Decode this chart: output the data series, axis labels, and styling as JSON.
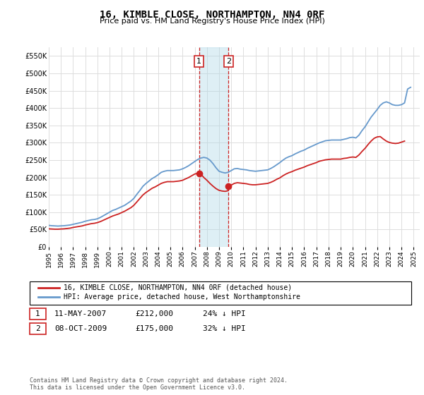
{
  "title": "16, KIMBLE CLOSE, NORTHAMPTON, NN4 0RF",
  "subtitle": "Price paid vs. HM Land Registry's House Price Index (HPI)",
  "ytick_values": [
    0,
    50000,
    100000,
    150000,
    200000,
    250000,
    300000,
    350000,
    400000,
    450000,
    500000,
    550000
  ],
  "ylim": [
    0,
    575000
  ],
  "xlim": [
    1995,
    2025.5
  ],
  "background_color": "#ffffff",
  "grid_color": "#dddddd",
  "hpi_color": "#6699cc",
  "price_color": "#cc2222",
  "marker_color": "#cc2222",
  "sale1_date_x": 2007.36,
  "sale1_price": 212000,
  "sale2_date_x": 2009.77,
  "sale2_price": 175000,
  "vline_color": "#cc2222",
  "shade_color": "#add8e6",
  "legend_property_label": "16, KIMBLE CLOSE, NORTHAMPTON, NN4 0RF (detached house)",
  "legend_hpi_label": "HPI: Average price, detached house, West Northamptonshire",
  "table_row1": [
    "1",
    "11-MAY-2007",
    "£212,000",
    "24% ↓ HPI"
  ],
  "table_row2": [
    "2",
    "08-OCT-2009",
    "£175,000",
    "32% ↓ HPI"
  ],
  "footer": "Contains HM Land Registry data © Crown copyright and database right 2024.\nThis data is licensed under the Open Government Licence v3.0.",
  "hpi_data": [
    [
      1995.0,
      62000
    ],
    [
      1995.25,
      61000
    ],
    [
      1995.5,
      60500
    ],
    [
      1995.75,
      60000
    ],
    [
      1996.0,
      60500
    ],
    [
      1996.25,
      61000
    ],
    [
      1996.5,
      62000
    ],
    [
      1996.75,
      63000
    ],
    [
      1997.0,
      65000
    ],
    [
      1997.25,
      67000
    ],
    [
      1997.5,
      69000
    ],
    [
      1997.75,
      71000
    ],
    [
      1998.0,
      74000
    ],
    [
      1998.25,
      76000
    ],
    [
      1998.5,
      78000
    ],
    [
      1998.75,
      79000
    ],
    [
      1999.0,
      81000
    ],
    [
      1999.25,
      85000
    ],
    [
      1999.5,
      90000
    ],
    [
      1999.75,
      95000
    ],
    [
      2000.0,
      100000
    ],
    [
      2000.25,
      105000
    ],
    [
      2000.5,
      108000
    ],
    [
      2000.75,
      112000
    ],
    [
      2001.0,
      116000
    ],
    [
      2001.25,
      120000
    ],
    [
      2001.5,
      126000
    ],
    [
      2001.75,
      132000
    ],
    [
      2002.0,
      140000
    ],
    [
      2002.25,
      152000
    ],
    [
      2002.5,
      163000
    ],
    [
      2002.75,
      175000
    ],
    [
      2003.0,
      183000
    ],
    [
      2003.25,
      190000
    ],
    [
      2003.5,
      197000
    ],
    [
      2003.75,
      202000
    ],
    [
      2004.0,
      208000
    ],
    [
      2004.25,
      215000
    ],
    [
      2004.5,
      218000
    ],
    [
      2004.75,
      220000
    ],
    [
      2005.0,
      220000
    ],
    [
      2005.25,
      220000
    ],
    [
      2005.5,
      221000
    ],
    [
      2005.75,
      222000
    ],
    [
      2006.0,
      225000
    ],
    [
      2006.25,
      229000
    ],
    [
      2006.5,
      234000
    ],
    [
      2006.75,
      240000
    ],
    [
      2007.0,
      246000
    ],
    [
      2007.25,
      252000
    ],
    [
      2007.5,
      256000
    ],
    [
      2007.75,
      258000
    ],
    [
      2008.0,
      256000
    ],
    [
      2008.25,
      250000
    ],
    [
      2008.5,
      240000
    ],
    [
      2008.75,
      228000
    ],
    [
      2009.0,
      218000
    ],
    [
      2009.25,
      215000
    ],
    [
      2009.5,
      213000
    ],
    [
      2009.75,
      215000
    ],
    [
      2010.0,
      220000
    ],
    [
      2010.25,
      225000
    ],
    [
      2010.5,
      226000
    ],
    [
      2010.75,
      224000
    ],
    [
      2011.0,
      223000
    ],
    [
      2011.25,
      222000
    ],
    [
      2011.5,
      220000
    ],
    [
      2011.75,
      219000
    ],
    [
      2012.0,
      218000
    ],
    [
      2012.25,
      219000
    ],
    [
      2012.5,
      220000
    ],
    [
      2012.75,
      221000
    ],
    [
      2013.0,
      222000
    ],
    [
      2013.25,
      226000
    ],
    [
      2013.5,
      231000
    ],
    [
      2013.75,
      237000
    ],
    [
      2014.0,
      243000
    ],
    [
      2014.25,
      250000
    ],
    [
      2014.5,
      256000
    ],
    [
      2014.75,
      260000
    ],
    [
      2015.0,
      263000
    ],
    [
      2015.25,
      268000
    ],
    [
      2015.5,
      272000
    ],
    [
      2015.75,
      276000
    ],
    [
      2016.0,
      279000
    ],
    [
      2016.25,
      284000
    ],
    [
      2016.5,
      288000
    ],
    [
      2016.75,
      292000
    ],
    [
      2017.0,
      296000
    ],
    [
      2017.25,
      300000
    ],
    [
      2017.5,
      303000
    ],
    [
      2017.75,
      306000
    ],
    [
      2018.0,
      307000
    ],
    [
      2018.25,
      308000
    ],
    [
      2018.5,
      308000
    ],
    [
      2018.75,
      308000
    ],
    [
      2019.0,
      308000
    ],
    [
      2019.25,
      310000
    ],
    [
      2019.5,
      312000
    ],
    [
      2019.75,
      315000
    ],
    [
      2020.0,
      316000
    ],
    [
      2020.25,
      314000
    ],
    [
      2020.5,
      322000
    ],
    [
      2020.75,
      335000
    ],
    [
      2021.0,
      346000
    ],
    [
      2021.25,
      360000
    ],
    [
      2021.5,
      374000
    ],
    [
      2021.75,
      385000
    ],
    [
      2022.0,
      396000
    ],
    [
      2022.25,
      408000
    ],
    [
      2022.5,
      415000
    ],
    [
      2022.75,
      418000
    ],
    [
      2023.0,
      415000
    ],
    [
      2023.25,
      410000
    ],
    [
      2023.5,
      408000
    ],
    [
      2023.75,
      408000
    ],
    [
      2024.0,
      410000
    ],
    [
      2024.25,
      415000
    ],
    [
      2024.5,
      455000
    ],
    [
      2024.75,
      460000
    ]
  ],
  "price_data": [
    [
      1995.0,
      52000
    ],
    [
      1995.25,
      51500
    ],
    [
      1995.5,
      51000
    ],
    [
      1995.75,
      51000
    ],
    [
      1996.0,
      51500
    ],
    [
      1996.25,
      52000
    ],
    [
      1996.5,
      53000
    ],
    [
      1996.75,
      54000
    ],
    [
      1997.0,
      56000
    ],
    [
      1997.25,
      57500
    ],
    [
      1997.5,
      59000
    ],
    [
      1997.75,
      60500
    ],
    [
      1998.0,
      63000
    ],
    [
      1998.25,
      65000
    ],
    [
      1998.5,
      67000
    ],
    [
      1998.75,
      68000
    ],
    [
      1999.0,
      70000
    ],
    [
      1999.25,
      73000
    ],
    [
      1999.5,
      77000
    ],
    [
      1999.75,
      81000
    ],
    [
      2000.0,
      85000
    ],
    [
      2000.25,
      89000
    ],
    [
      2000.5,
      92000
    ],
    [
      2000.75,
      95000
    ],
    [
      2001.0,
      99000
    ],
    [
      2001.25,
      103000
    ],
    [
      2001.5,
      108000
    ],
    [
      2001.75,
      113000
    ],
    [
      2002.0,
      120000
    ],
    [
      2002.25,
      130000
    ],
    [
      2002.5,
      140000
    ],
    [
      2002.75,
      150000
    ],
    [
      2003.0,
      157000
    ],
    [
      2003.25,
      163000
    ],
    [
      2003.5,
      169000
    ],
    [
      2003.75,
      173000
    ],
    [
      2004.0,
      178000
    ],
    [
      2004.25,
      183000
    ],
    [
      2004.5,
      186000
    ],
    [
      2004.75,
      188000
    ],
    [
      2005.0,
      188000
    ],
    [
      2005.25,
      188000
    ],
    [
      2005.5,
      189000
    ],
    [
      2005.75,
      190000
    ],
    [
      2006.0,
      192000
    ],
    [
      2006.25,
      196000
    ],
    [
      2006.5,
      200000
    ],
    [
      2006.75,
      205000
    ],
    [
      2007.0,
      210000
    ],
    [
      2007.25,
      212000
    ],
    [
      2007.36,
      212000
    ],
    [
      2007.5,
      210000
    ],
    [
      2007.75,
      200000
    ],
    [
      2008.0,
      192000
    ],
    [
      2008.25,
      183000
    ],
    [
      2008.5,
      175000
    ],
    [
      2008.75,
      168000
    ],
    [
      2009.0,
      163000
    ],
    [
      2009.25,
      161000
    ],
    [
      2009.5,
      160000
    ],
    [
      2009.75,
      162000
    ],
    [
      2009.77,
      175000
    ],
    [
      2010.0,
      178000
    ],
    [
      2010.25,
      183000
    ],
    [
      2010.5,
      185000
    ],
    [
      2010.75,
      184000
    ],
    [
      2011.0,
      183000
    ],
    [
      2011.25,
      182000
    ],
    [
      2011.5,
      180000
    ],
    [
      2011.75,
      179000
    ],
    [
      2012.0,
      179000
    ],
    [
      2012.25,
      180000
    ],
    [
      2012.5,
      181000
    ],
    [
      2012.75,
      182000
    ],
    [
      2013.0,
      183000
    ],
    [
      2013.25,
      186000
    ],
    [
      2013.5,
      190000
    ],
    [
      2013.75,
      195000
    ],
    [
      2014.0,
      199000
    ],
    [
      2014.25,
      205000
    ],
    [
      2014.5,
      210000
    ],
    [
      2014.75,
      214000
    ],
    [
      2015.0,
      217000
    ],
    [
      2015.25,
      221000
    ],
    [
      2015.5,
      224000
    ],
    [
      2015.75,
      227000
    ],
    [
      2016.0,
      230000
    ],
    [
      2016.25,
      234000
    ],
    [
      2016.5,
      237000
    ],
    [
      2016.75,
      240000
    ],
    [
      2017.0,
      243000
    ],
    [
      2017.25,
      247000
    ],
    [
      2017.5,
      249000
    ],
    [
      2017.75,
      251000
    ],
    [
      2018.0,
      252000
    ],
    [
      2018.25,
      253000
    ],
    [
      2018.5,
      253000
    ],
    [
      2018.75,
      253000
    ],
    [
      2019.0,
      253000
    ],
    [
      2019.25,
      255000
    ],
    [
      2019.5,
      256000
    ],
    [
      2019.75,
      258000
    ],
    [
      2020.0,
      259000
    ],
    [
      2020.25,
      258000
    ],
    [
      2020.5,
      265000
    ],
    [
      2020.75,
      275000
    ],
    [
      2021.0,
      284000
    ],
    [
      2021.25,
      295000
    ],
    [
      2021.5,
      305000
    ],
    [
      2021.75,
      313000
    ],
    [
      2022.0,
      317000
    ],
    [
      2022.25,
      318000
    ],
    [
      2022.5,
      311000
    ],
    [
      2022.75,
      305000
    ],
    [
      2023.0,
      301000
    ],
    [
      2023.25,
      299000
    ],
    [
      2023.5,
      298000
    ],
    [
      2023.75,
      299000
    ],
    [
      2024.0,
      302000
    ],
    [
      2024.25,
      305000
    ]
  ]
}
